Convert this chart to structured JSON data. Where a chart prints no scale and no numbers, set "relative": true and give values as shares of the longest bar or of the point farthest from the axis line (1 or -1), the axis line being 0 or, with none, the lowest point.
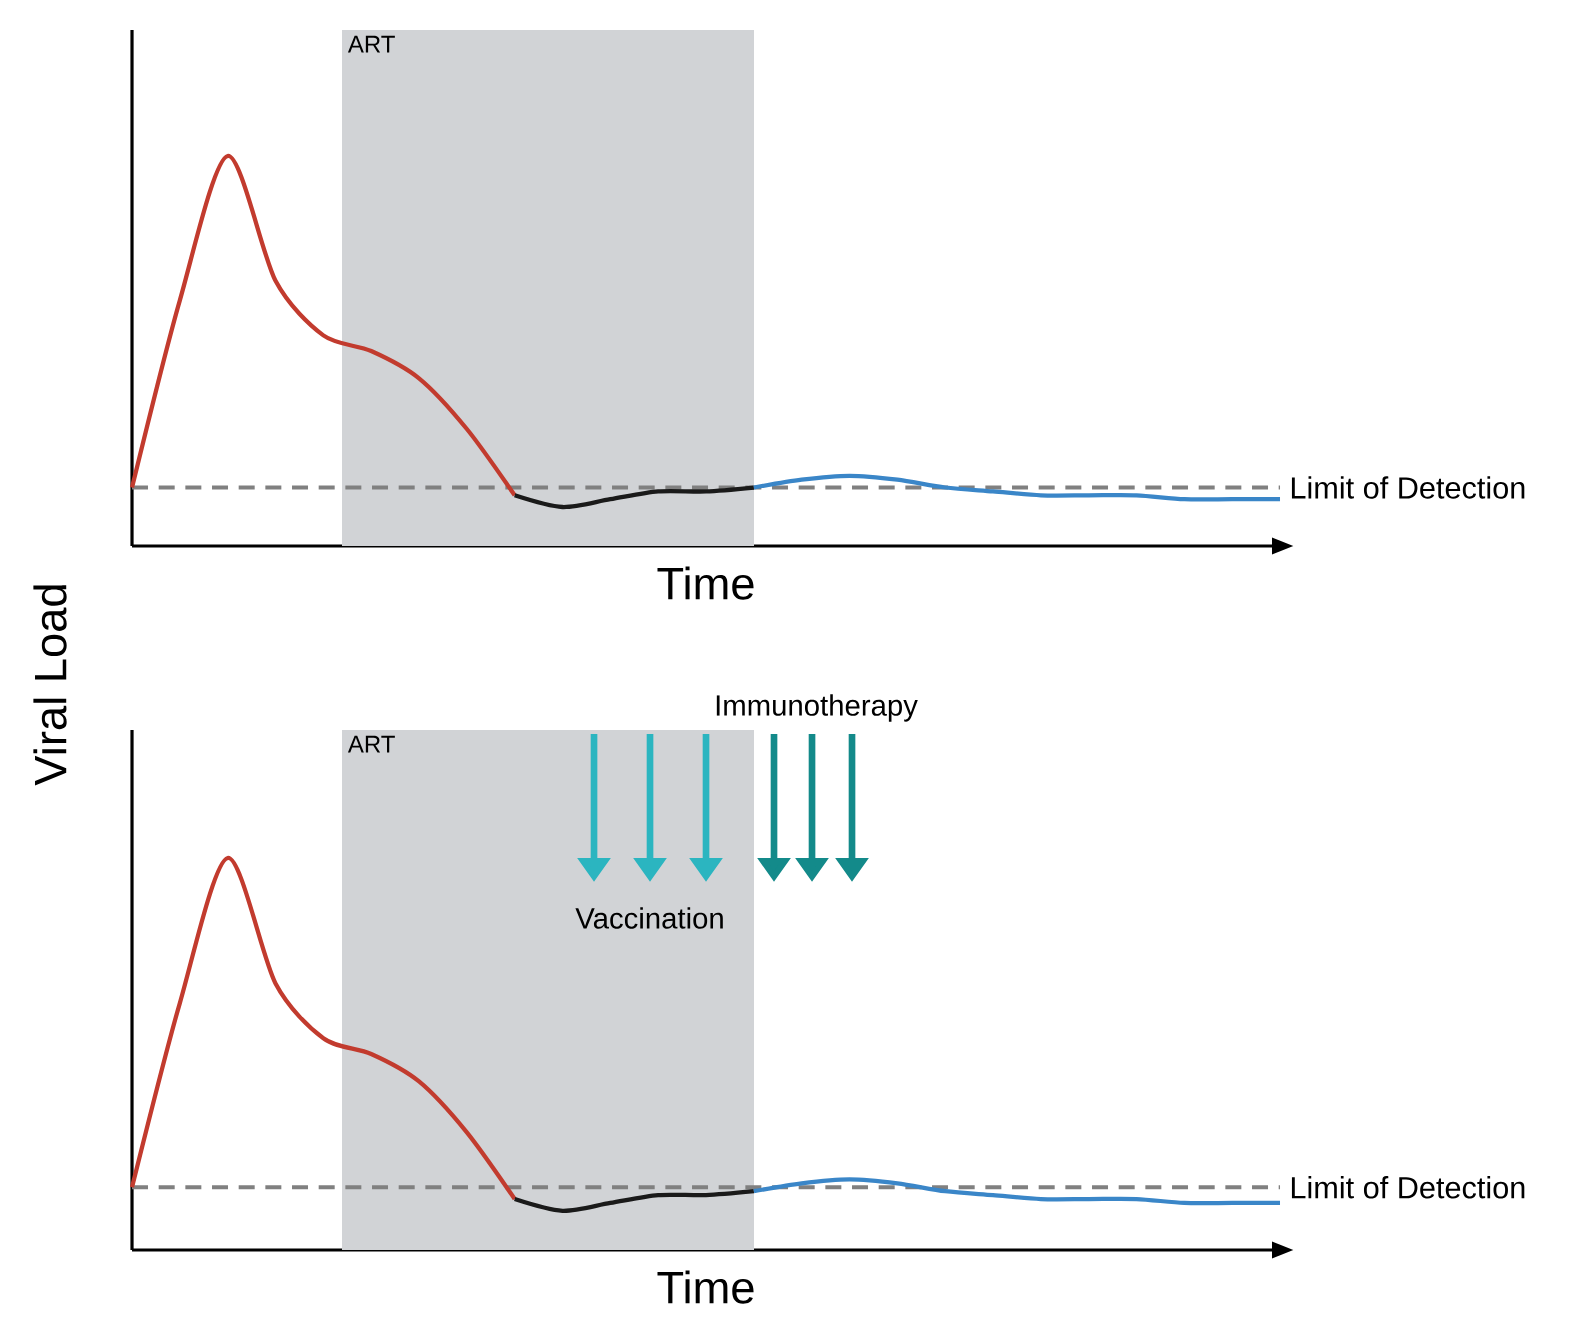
{
  "chart_data": [
    {
      "type": "line",
      "relative": true,
      "xlabel": "Time",
      "ylabel": "Viral Load",
      "annotations": [
        "ART"
      ],
      "categories": [
        null,
        null,
        null,
        null,
        null,
        null,
        null,
        null,
        null,
        null,
        null,
        null,
        null,
        null,
        null,
        null,
        null,
        null,
        null,
        null,
        null,
        null,
        null,
        null,
        null
      ],
      "series": [
        {
          "color": "#c23b2e",
          "values": [
            0.15,
            0.63,
            1,
            0.68,
            0.54,
            0.5,
            0.43,
            0.3,
            0.13,
            null,
            null,
            null,
            null,
            null,
            null,
            null,
            null,
            null,
            null,
            null,
            null,
            null,
            null,
            null,
            null
          ]
        },
        {
          "color": "#1a1a1a",
          "values": [
            null,
            null,
            null,
            null,
            null,
            null,
            null,
            null,
            0.13,
            0.1,
            0.12,
            0.14,
            0.14,
            0.15,
            null,
            null,
            null,
            null,
            null,
            null,
            null,
            null,
            null,
            null,
            null
          ]
        },
        {
          "color": "#3a86c8",
          "values": [
            null,
            null,
            null,
            null,
            null,
            null,
            null,
            null,
            null,
            null,
            null,
            null,
            null,
            0.15,
            0.17,
            0.18,
            0.17,
            0.15,
            0.14,
            0.13,
            0.13,
            0.13,
            0.12,
            0.12,
            0.12
          ]
        }
      ],
      "ref_lines": [
        {
          "axis": "y",
          "value": 0.15,
          "label": "Limit of Detection",
          "color": "#808080",
          "line_style": "dashed"
        }
      ]
    },
    {
      "type": "line",
      "relative": true,
      "xlabel": "Time",
      "categories": [
        null,
        null,
        null,
        null,
        null,
        null,
        null,
        null,
        null,
        null,
        null,
        null,
        null,
        null,
        null,
        null,
        null,
        null,
        null,
        null,
        null,
        null,
        null,
        null,
        null
      ],
      "series": [
        {
          "color": "#c23b2e",
          "values": [
            0.16,
            0.63,
            1,
            0.68,
            0.54,
            0.5,
            0.43,
            0.3,
            0.13,
            null,
            null,
            null,
            null,
            null,
            null,
            null,
            null,
            null,
            null,
            null,
            null,
            null,
            null,
            null,
            null
          ]
        },
        {
          "color": "#1a1a1a",
          "values": [
            null,
            null,
            null,
            null,
            null,
            null,
            null,
            null,
            0.13,
            0.1,
            0.12,
            0.14,
            0.14,
            0.15,
            null,
            null,
            null,
            null,
            null,
            null,
            null,
            null,
            null,
            null,
            null
          ]
        },
        {
          "color": "#3a86c8",
          "values": [
            null,
            null,
            null,
            null,
            null,
            null,
            null,
            null,
            null,
            null,
            null,
            null,
            null,
            0.15,
            0.17,
            0.18,
            0.17,
            0.15,
            0.14,
            0.13,
            0.13,
            0.13,
            0.12,
            0.12,
            0.12
          ]
        }
      ],
      "ref_lines": [
        {
          "axis": "y",
          "value": 0.16,
          "label": "Limit of Detection",
          "color": "#808080",
          "line_style": "dashed"
        }
      ],
      "annotations": [
        "ART",
        "Vaccination",
        "Immunotherapy"
      ]
    }
  ]
}
